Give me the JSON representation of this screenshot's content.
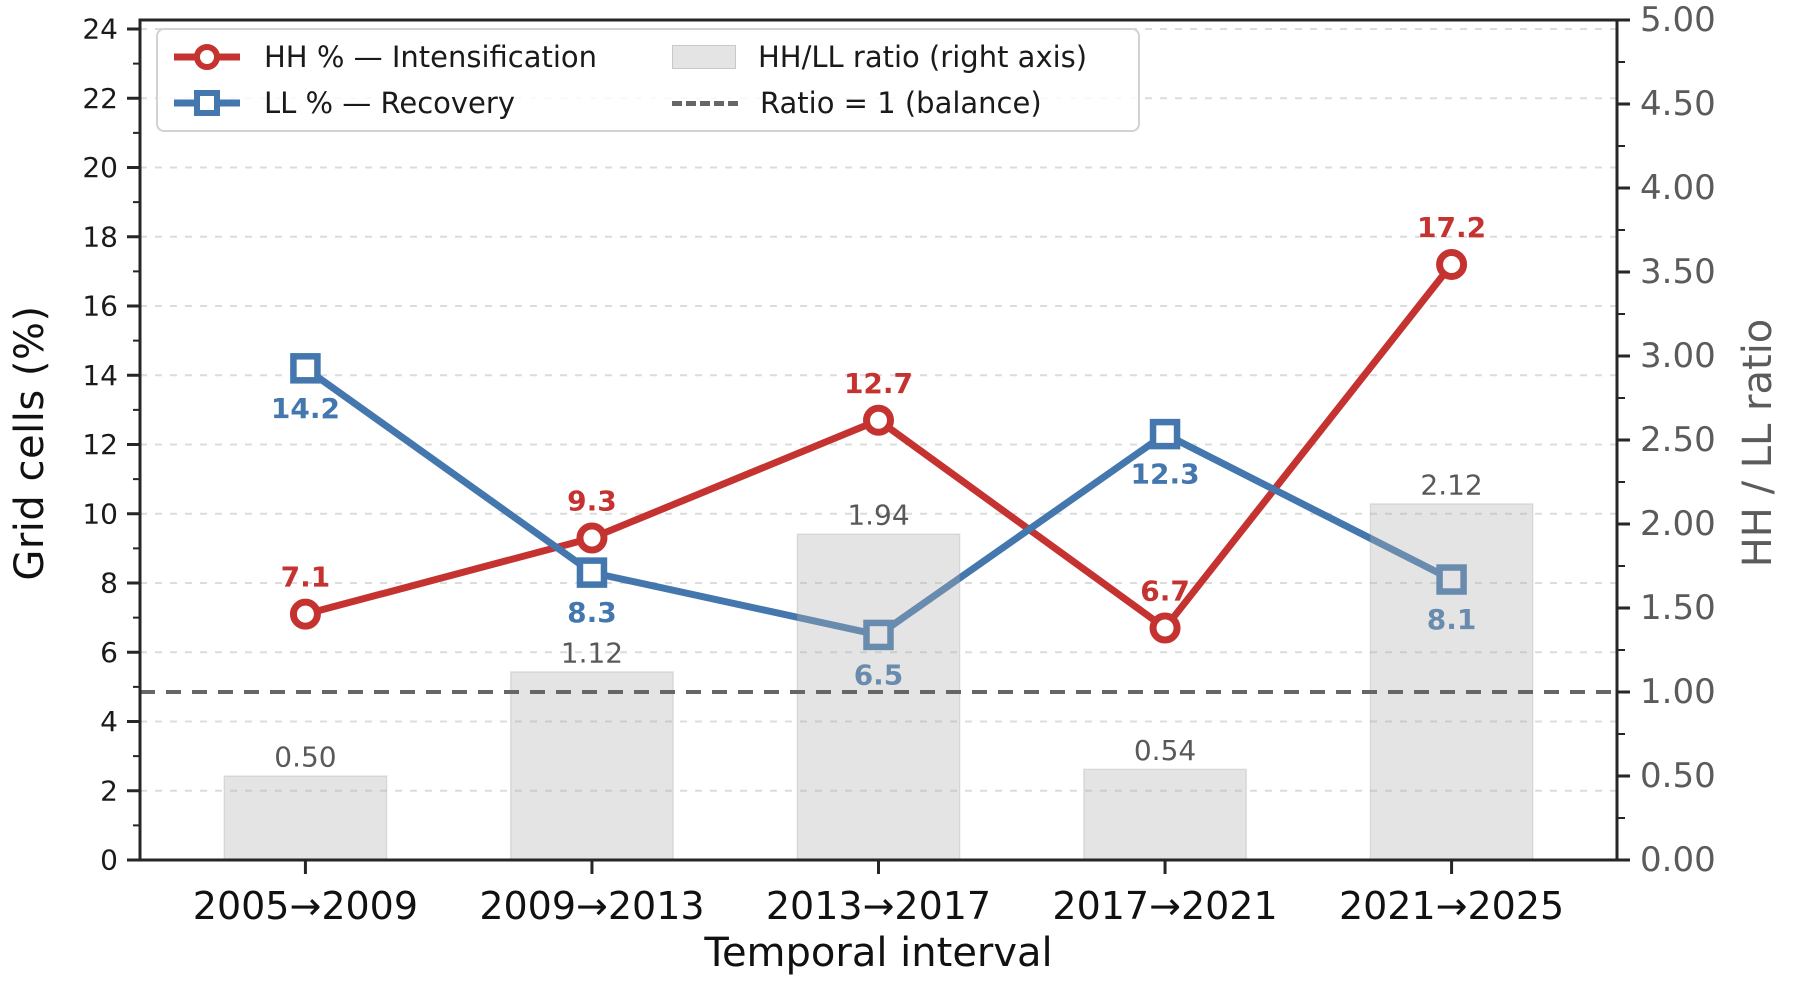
{
  "chart_data": {
    "type": "line",
    "title": "",
    "categories": [
      "2005→2009",
      "2009→2013",
      "2013→2017",
      "2017→2021",
      "2021→2025"
    ],
    "series": [
      {
        "name": "HH % — Intensification",
        "kind": "line",
        "axis": "left",
        "marker": "circle",
        "color": "#c53331",
        "values": [
          7.1,
          9.3,
          12.7,
          6.7,
          17.2
        ],
        "labels": [
          "7.1",
          "9.3",
          "12.7",
          "6.7",
          "17.2"
        ]
      },
      {
        "name": "LL % — Recovery",
        "kind": "line",
        "axis": "left",
        "marker": "square",
        "color": "#4377ad",
        "values": [
          14.2,
          8.3,
          6.5,
          12.3,
          8.1
        ],
        "labels": [
          "14.2",
          "8.3",
          "6.5",
          "12.3",
          "8.1"
        ]
      },
      {
        "name": "HH/LL ratio (right axis)",
        "kind": "bar",
        "axis": "right",
        "color": "#e4e4e4",
        "values": [
          0.5,
          1.12,
          1.94,
          0.54,
          2.12
        ],
        "labels": [
          "0.50",
          "1.12",
          "1.94",
          "0.54",
          "2.12"
        ]
      }
    ],
    "reference_line": {
      "label": "Ratio = 1 (balance)",
      "value": 1.0,
      "axis": "right",
      "style": "dashed",
      "color": "#666666"
    },
    "xlabel": "Temporal interval",
    "ylabel_left": "Grid cells (%)",
    "ylabel_right": "HH / LL ratio",
    "left_ticks": [
      "0",
      "2",
      "4",
      "6",
      "8",
      "10",
      "12",
      "14",
      "16",
      "18",
      "20",
      "22",
      "24"
    ],
    "right_ticks": [
      "0.00",
      "0.50",
      "1.00",
      "1.50",
      "2.00",
      "2.50",
      "3.00",
      "3.50",
      "4.00",
      "4.50",
      "5.00"
    ],
    "ylim_left": [
      0,
      24.26
    ],
    "ylim_right": [
      0,
      5
    ],
    "grid": "horizontal-dashed",
    "legend_position": "upper-left"
  },
  "colors": {
    "hh_line": "#c53331",
    "ll_line": "#4377ad",
    "bar_fill": "#e4e4e4",
    "bar_label": "#595959",
    "left_tick_text": "#1a1a1a",
    "right_tick_text": "#5b5b5b",
    "reference_line": "#666666",
    "gridline": "#dcdcdc",
    "spine": "#262626"
  }
}
